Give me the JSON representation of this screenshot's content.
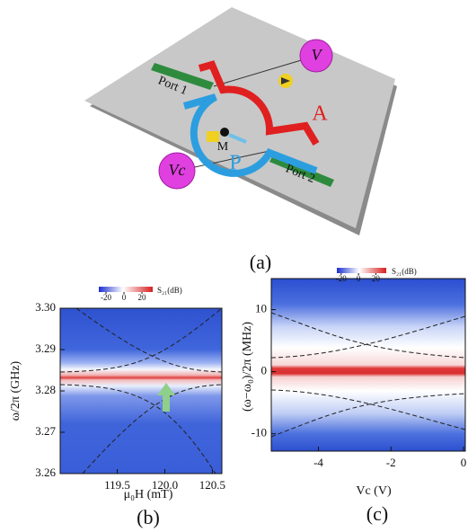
{
  "panel_a": {
    "port_1": "Port 1",
    "port_2": "Port 2",
    "voltage": "V",
    "voltage_c": "Vc",
    "arm_a": "A",
    "arm_p": "P",
    "magnet": "M",
    "caption": "(a)"
  },
  "panel_b": {
    "colorbar": {
      "label": "S₂₁(dB)",
      "lim": [
        -28,
        32
      ],
      "ticks": [
        -20,
        0,
        20
      ]
    },
    "xlabel": "μ₀H (mT)",
    "ylabel": "ω/2π (GHz)",
    "xlim": [
      118.9,
      120.6
    ],
    "xticks": [
      119.5,
      {
        "value": 120,
        "label": "120.0"
      },
      120.5
    ],
    "ylim": [
      3.26,
      3.3
    ],
    "yticks": [
      3.26,
      3.27,
      3.28,
      3.29,
      {
        "value": 3.3,
        "label": "3.30"
      }
    ],
    "caption": "(b)"
  },
  "panel_c": {
    "colorbar": {
      "label": "S₂₁(dB)",
      "lim": [
        -25,
        32
      ],
      "ticks": [
        -20,
        0,
        20
      ]
    },
    "xlabel": "Vc (V)",
    "ylabel": "(ω−ω₀)/2π (MHz)",
    "xlim": [
      -5.3,
      0.05
    ],
    "xticks": [
      -4,
      -2,
      0
    ],
    "ylim": [
      -12.8,
      15
    ],
    "yticks": [
      -10,
      0,
      10
    ],
    "caption": "(c)"
  }
}
